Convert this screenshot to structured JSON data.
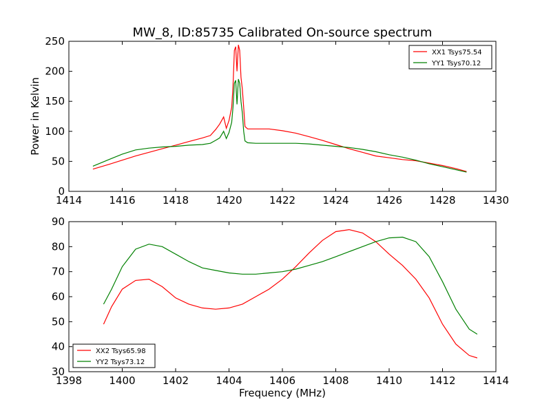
{
  "figure": {
    "title": "MW_8, ID:85735 Calibrated On-source spectrum",
    "shared_xlabel": "Frequency (MHz)",
    "shared_ylabel": "Power in Kelvin"
  },
  "colors": {
    "red": "#ff0000",
    "green": "#008000",
    "axis": "#000000"
  },
  "chart_data": [
    {
      "type": "line",
      "title": "MW_8, ID:85735 Calibrated On-source spectrum",
      "xlabel": "",
      "ylabel": "Power in Kelvin",
      "xlim": [
        1414,
        1430
      ],
      "ylim": [
        0,
        250
      ],
      "xticks": [
        "1414",
        "1416",
        "1418",
        "1420",
        "1422",
        "1424",
        "1426",
        "1428",
        "1430"
      ],
      "yticks": [
        "0",
        "50",
        "100",
        "150",
        "200",
        "250"
      ],
      "legend": "top-right",
      "grid": false,
      "series": [
        {
          "name": "XX1 Tsys75.54",
          "color": "#ff0000",
          "x": [
            1414.9,
            1415.5,
            1416,
            1416.5,
            1417,
            1417.5,
            1418,
            1418.5,
            1419,
            1419.3,
            1419.5,
            1419.65,
            1419.8,
            1419.9,
            1420.0,
            1420.1,
            1420.15,
            1420.2,
            1420.25,
            1420.3,
            1420.35,
            1420.4,
            1420.45,
            1420.5,
            1420.55,
            1420.6,
            1420.7,
            1421,
            1421.5,
            1422,
            1422.5,
            1423,
            1423.5,
            1424,
            1424.5,
            1425,
            1425.5,
            1426,
            1426.5,
            1427,
            1427.5,
            1428,
            1428.5,
            1428.9
          ],
          "y": [
            37,
            45,
            52,
            59,
            65,
            71,
            77,
            83,
            89,
            93,
            103,
            112,
            124,
            105,
            118,
            140,
            175,
            235,
            241,
            200,
            244,
            235,
            190,
            170,
            140,
            108,
            104,
            104,
            104,
            101,
            97,
            91,
            85,
            78,
            71,
            65,
            59,
            56,
            53,
            51,
            47,
            43,
            38,
            33
          ]
        },
        {
          "name": "YY1 Tsys70.12",
          "color": "#008000",
          "x": [
            1414.9,
            1415.5,
            1416,
            1416.5,
            1417,
            1417.5,
            1418,
            1418.5,
            1419,
            1419.3,
            1419.5,
            1419.65,
            1419.8,
            1419.9,
            1420.0,
            1420.1,
            1420.15,
            1420.2,
            1420.25,
            1420.3,
            1420.35,
            1420.4,
            1420.45,
            1420.5,
            1420.55,
            1420.6,
            1420.7,
            1421,
            1421.5,
            1422,
            1422.5,
            1423,
            1423.5,
            1424,
            1424.5,
            1425,
            1425.5,
            1426,
            1426.5,
            1427,
            1427.5,
            1428,
            1428.5,
            1428.9
          ],
          "y": [
            42,
            53,
            62,
            69,
            72,
            74,
            75,
            77,
            78,
            80,
            85,
            89,
            100,
            88,
            98,
            115,
            140,
            180,
            185,
            145,
            187,
            180,
            150,
            130,
            100,
            84,
            81,
            80,
            80,
            80,
            80,
            79,
            77,
            75,
            73,
            70,
            66,
            61,
            57,
            52,
            46,
            41,
            36,
            32
          ]
        }
      ]
    },
    {
      "type": "line",
      "title": "",
      "xlabel": "Frequency (MHz)",
      "ylabel": "",
      "xlim": [
        1398,
        1414
      ],
      "ylim": [
        30,
        90
      ],
      "xticks": [
        "1398",
        "1400",
        "1402",
        "1404",
        "1406",
        "1408",
        "1410",
        "1412",
        "1414"
      ],
      "yticks": [
        "30",
        "40",
        "50",
        "60",
        "70",
        "80",
        "90"
      ],
      "legend": "bottom-left",
      "grid": false,
      "series": [
        {
          "name": "XX2 Tsys65.98",
          "color": "#ff0000",
          "x": [
            1399.3,
            1399.6,
            1400,
            1400.5,
            1401,
            1401.5,
            1402,
            1402.5,
            1403,
            1403.5,
            1404,
            1404.5,
            1405,
            1405.5,
            1406,
            1406.5,
            1407,
            1407.5,
            1408,
            1408.5,
            1409,
            1409.5,
            1410,
            1410.5,
            1411,
            1411.5,
            1412,
            1412.5,
            1413,
            1413.3
          ],
          "y": [
            49,
            56,
            63,
            66.5,
            67,
            64,
            59.5,
            57,
            55.5,
            55,
            55.5,
            57,
            60,
            63,
            67,
            72,
            77.5,
            82.5,
            86,
            86.8,
            85.5,
            82,
            77,
            72.5,
            67,
            59.5,
            49,
            41,
            36.5,
            35.5
          ]
        },
        {
          "name": "YY2 Tsys73.12",
          "color": "#008000",
          "x": [
            1399.3,
            1399.6,
            1400,
            1400.5,
            1401,
            1401.5,
            1402,
            1402.5,
            1403,
            1403.5,
            1404,
            1404.5,
            1405,
            1405.5,
            1406,
            1406.5,
            1407,
            1407.5,
            1408,
            1408.5,
            1409,
            1409.5,
            1410,
            1410.5,
            1411,
            1411.5,
            1412,
            1412.5,
            1413,
            1413.3
          ],
          "y": [
            57,
            63,
            72,
            79,
            81,
            80,
            77,
            74,
            71.5,
            70.5,
            69.5,
            69,
            69,
            69.5,
            70,
            71,
            72.5,
            74,
            76,
            78,
            80,
            82,
            83.5,
            83.8,
            82,
            76,
            66,
            55,
            47,
            45
          ]
        }
      ]
    }
  ]
}
